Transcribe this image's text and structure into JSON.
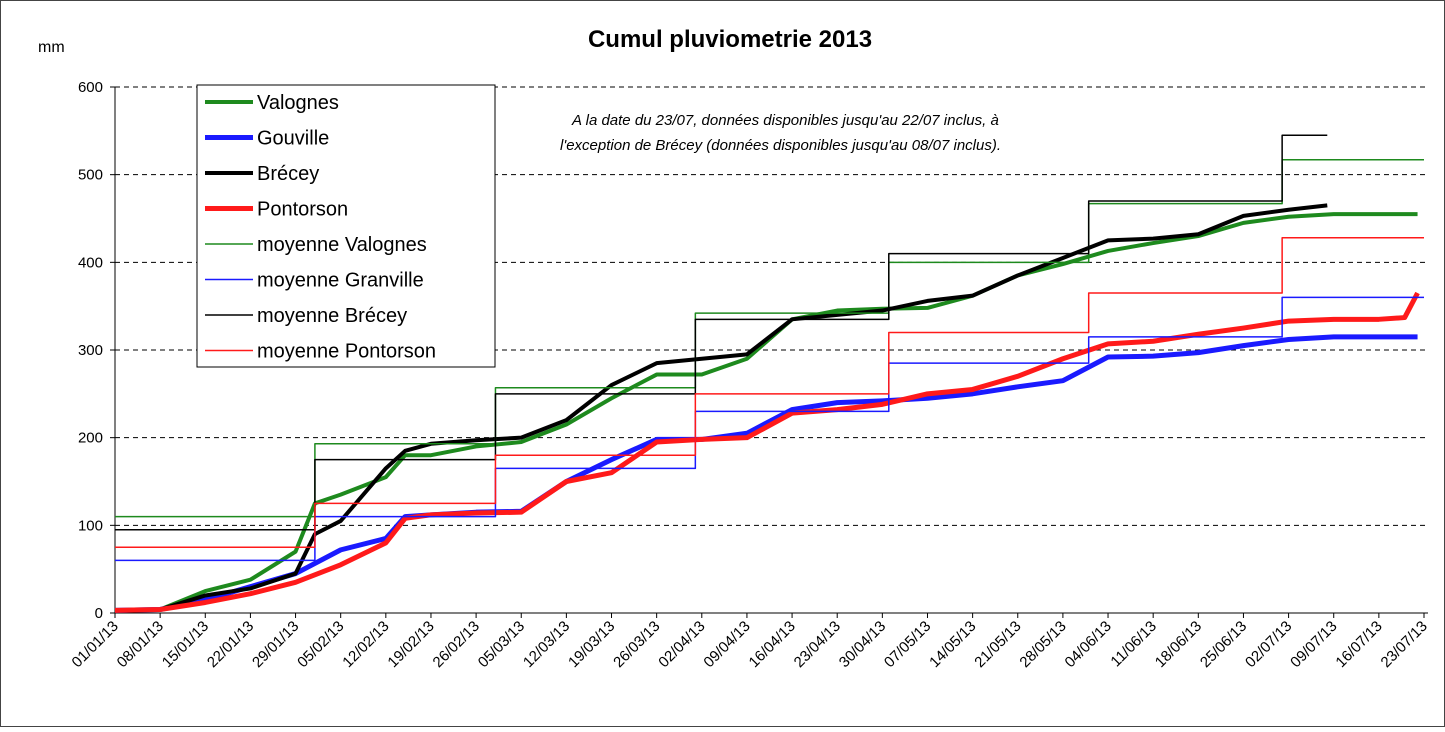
{
  "chart_data": {
    "type": "line",
    "title": "Cumul pluviometrie 2013",
    "y_label": "mm",
    "annotation": [
      "A la date du 23/07, données disponibles jusqu'au 22/07 inclus, à",
      "l'exception de Brécey (données disponibles jusqu'au 08/07 inclus)."
    ],
    "xlim": [
      "01/01/13",
      "23/07/13"
    ],
    "xticks": [
      "01/01/13",
      "08/01/13",
      "15/01/13",
      "22/01/13",
      "29/01/13",
      "05/02/13",
      "12/02/13",
      "19/02/13",
      "26/02/13",
      "05/03/13",
      "12/03/13",
      "19/03/13",
      "26/03/13",
      "02/04/13",
      "09/04/13",
      "16/04/13",
      "23/04/13",
      "30/04/13",
      "07/05/13",
      "14/05/13",
      "21/05/13",
      "28/05/13",
      "04/06/13",
      "11/06/13",
      "18/06/13",
      "25/06/13",
      "02/07/13",
      "09/07/13",
      "16/07/13",
      "23/07/13"
    ],
    "ylim": [
      0,
      600
    ],
    "yticks": [
      0,
      100,
      200,
      300,
      400,
      500,
      600
    ],
    "grid": true,
    "series": [
      {
        "name": "Valognes",
        "color": "#1e8a1e",
        "line_width": 4,
        "step": false,
        "x": [
          "01/01/13",
          "08/01/13",
          "15/01/13",
          "22/01/13",
          "29/01/13",
          "01/02/13",
          "05/02/13",
          "12/02/13",
          "15/02/13",
          "19/02/13",
          "26/02/13",
          "05/03/13",
          "12/03/13",
          "19/03/13",
          "26/03/13",
          "02/04/13",
          "09/04/13",
          "16/04/13",
          "23/04/13",
          "30/04/13",
          "07/05/13",
          "14/05/13",
          "21/05/13",
          "28/05/13",
          "04/06/13",
          "11/06/13",
          "18/06/13",
          "25/06/13",
          "02/07/13",
          "09/07/13",
          "16/07/13",
          "22/07/13"
        ],
        "values": [
          3,
          4,
          25,
          38,
          70,
          125,
          135,
          155,
          180,
          180,
          190,
          195,
          215,
          245,
          272,
          272,
          290,
          335,
          345,
          347,
          348,
          362,
          385,
          398,
          413,
          422,
          430,
          445,
          452,
          455,
          455,
          455
        ]
      },
      {
        "name": "Gouville",
        "color": "#1a1aff",
        "line_width": 5,
        "step": false,
        "x": [
          "01/01/13",
          "08/01/13",
          "15/01/13",
          "22/01/13",
          "29/01/13",
          "05/02/13",
          "12/02/13",
          "15/02/13",
          "19/02/13",
          "26/02/13",
          "05/03/13",
          "12/03/13",
          "19/03/13",
          "26/03/13",
          "02/04/13",
          "09/04/13",
          "16/04/13",
          "23/04/13",
          "30/04/13",
          "07/05/13",
          "14/05/13",
          "21/05/13",
          "28/05/13",
          "04/06/13",
          "11/06/13",
          "18/06/13",
          "25/06/13",
          "02/07/13",
          "09/07/13",
          "16/07/13",
          "22/07/13"
        ],
        "values": [
          3,
          4,
          15,
          30,
          45,
          72,
          85,
          110,
          112,
          115,
          116,
          150,
          175,
          198,
          198,
          205,
          232,
          240,
          242,
          245,
          250,
          258,
          265,
          292,
          293,
          297,
          305,
          312,
          315,
          315,
          315
        ]
      },
      {
        "name": "Brécey",
        "color": "#000000",
        "line_width": 4,
        "step": false,
        "x": [
          "01/01/13",
          "08/01/13",
          "15/01/13",
          "22/01/13",
          "29/01/13",
          "01/02/13",
          "05/02/13",
          "12/02/13",
          "15/02/13",
          "19/02/13",
          "26/02/13",
          "05/03/13",
          "12/03/13",
          "19/03/13",
          "26/03/13",
          "02/04/13",
          "09/04/13",
          "16/04/13",
          "23/04/13",
          "30/04/13",
          "07/05/13",
          "14/05/13",
          "21/05/13",
          "28/05/13",
          "04/06/13",
          "11/06/13",
          "18/06/13",
          "25/06/13",
          "02/07/13",
          "08/07/13"
        ],
        "values": [
          3,
          4,
          20,
          28,
          45,
          90,
          105,
          165,
          185,
          193,
          197,
          200,
          220,
          260,
          285,
          290,
          295,
          335,
          340,
          345,
          356,
          362,
          385,
          405,
          425,
          427,
          432,
          453,
          460,
          465
        ]
      },
      {
        "name": "Pontorson",
        "color": "#ff1a1a",
        "line_width": 5,
        "step": false,
        "x": [
          "01/01/13",
          "08/01/13",
          "15/01/13",
          "22/01/13",
          "29/01/13",
          "05/02/13",
          "12/02/13",
          "15/02/13",
          "19/02/13",
          "26/02/13",
          "05/03/13",
          "12/03/13",
          "19/03/13",
          "26/03/13",
          "02/04/13",
          "09/04/13",
          "16/04/13",
          "23/04/13",
          "30/04/13",
          "07/05/13",
          "14/05/13",
          "21/05/13",
          "28/05/13",
          "04/06/13",
          "11/06/13",
          "18/06/13",
          "25/06/13",
          "02/07/13",
          "09/07/13",
          "16/07/13",
          "20/07/13",
          "22/07/13"
        ],
        "values": [
          3,
          4,
          12,
          22,
          35,
          55,
          80,
          108,
          112,
          114,
          115,
          150,
          160,
          195,
          198,
          200,
          228,
          232,
          238,
          250,
          255,
          270,
          290,
          307,
          310,
          318,
          325,
          333,
          335,
          335,
          337,
          365
        ]
      },
      {
        "name": "moyenne Valognes",
        "color": "#1e8a1e",
        "line_width": 1.5,
        "step": true,
        "x": [
          "01/01/13",
          "01/02/13",
          "01/03/13",
          "01/04/13",
          "01/05/13",
          "01/06/13",
          "01/07/13",
          "23/07/13"
        ],
        "values": [
          110,
          193,
          257,
          342,
          400,
          467,
          517,
          517
        ]
      },
      {
        "name": "moyenne Granville",
        "color": "#1a1aff",
        "line_width": 1.5,
        "step": true,
        "x": [
          "01/01/13",
          "01/02/13",
          "01/03/13",
          "01/04/13",
          "01/05/13",
          "01/06/13",
          "01/07/13",
          "23/07/13"
        ],
        "values": [
          60,
          110,
          165,
          230,
          285,
          315,
          360,
          360
        ]
      },
      {
        "name": "moyenne Brécey",
        "color": "#000000",
        "line_width": 1.5,
        "step": true,
        "x": [
          "01/01/13",
          "01/02/13",
          "01/03/13",
          "01/04/13",
          "01/05/13",
          "01/06/13",
          "01/07/13",
          "08/07/13"
        ],
        "values": [
          95,
          175,
          250,
          335,
          410,
          470,
          545,
          545
        ]
      },
      {
        "name": "moyenne  Pontorson",
        "color": "#ff1a1a",
        "line_width": 1.5,
        "step": true,
        "x": [
          "01/01/13",
          "01/02/13",
          "01/03/13",
          "01/04/13",
          "01/05/13",
          "01/06/13",
          "01/07/13",
          "23/07/13"
        ],
        "values": [
          75,
          125,
          180,
          250,
          320,
          365,
          428,
          428
        ]
      }
    ]
  }
}
